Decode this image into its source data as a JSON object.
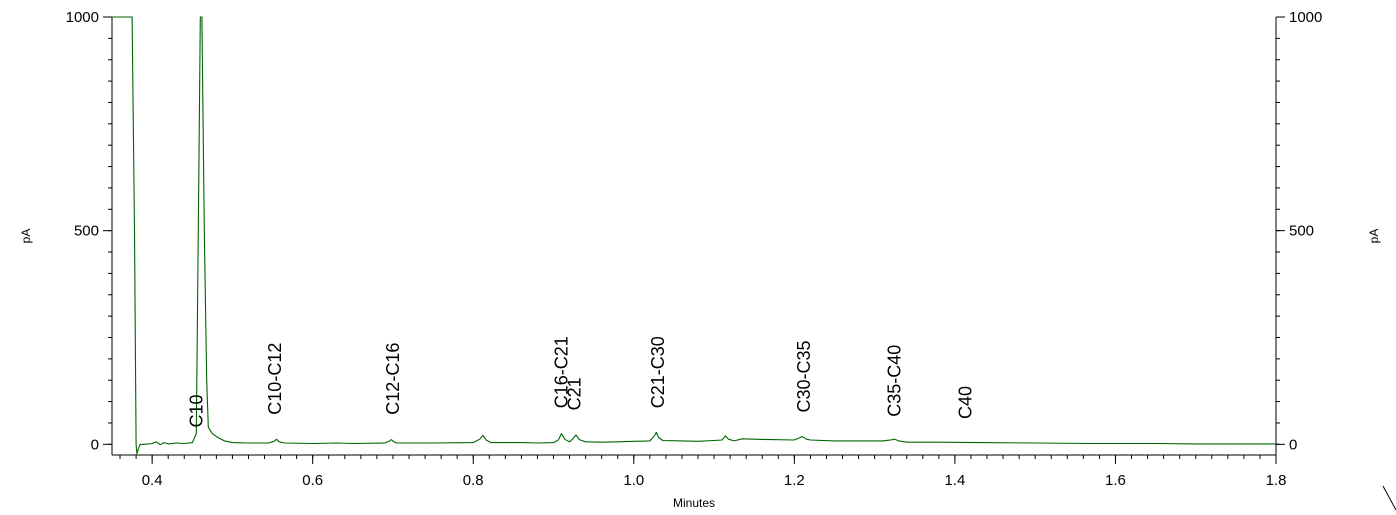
{
  "chart_data": {
    "type": "line",
    "title": "",
    "xlabel": "Minutes",
    "ylabel_left": "pA",
    "ylabel_right": "pA",
    "xlim": [
      0.35,
      1.8
    ],
    "ylim": [
      -25,
      1000
    ],
    "x_ticks": [
      0.4,
      0.6,
      0.8,
      1.0,
      1.2,
      1.4,
      1.6,
      1.8
    ],
    "x_tick_labels": [
      "0.4",
      "0.6",
      "0.8",
      "1.0",
      "1.2",
      "1.4",
      "1.6",
      "1.8"
    ],
    "y_ticks": [
      0,
      500,
      1000
    ],
    "y_tick_labels": [
      "0",
      "500",
      "1000"
    ],
    "grid": false,
    "series_color": "#006400",
    "series": [
      {
        "x": [
          0.35,
          0.375,
          0.378,
          0.38,
          0.381,
          0.383,
          0.385,
          0.39,
          0.4,
          0.405,
          0.41,
          0.415,
          0.42,
          0.43,
          0.44,
          0.45,
          0.455,
          0.458,
          0.46,
          0.462,
          0.465,
          0.468,
          0.47,
          0.475,
          0.48,
          0.49,
          0.5,
          0.52,
          0.545,
          0.552,
          0.555,
          0.558,
          0.565,
          0.6,
          0.63,
          0.65,
          0.69,
          0.695,
          0.698,
          0.701,
          0.705,
          0.75,
          0.8,
          0.808,
          0.812,
          0.816,
          0.822,
          0.86,
          0.88,
          0.9,
          0.906,
          0.91,
          0.914,
          0.92,
          0.924,
          0.928,
          0.932,
          0.94,
          0.96,
          0.98,
          1.0,
          1.02,
          1.025,
          1.028,
          1.031,
          1.036,
          1.06,
          1.08,
          1.1,
          1.11,
          1.114,
          1.118,
          1.125,
          1.135,
          1.15,
          1.17,
          1.2,
          1.205,
          1.21,
          1.215,
          1.22,
          1.25,
          1.28,
          1.31,
          1.32,
          1.325,
          1.33,
          1.34,
          1.38,
          1.43,
          1.5,
          1.57,
          1.65,
          1.7,
          1.8
        ],
        "y": [
          1000,
          1000,
          500,
          0,
          -22,
          -10,
          0,
          0,
          2,
          6,
          -1,
          4,
          1,
          3,
          2,
          4,
          25,
          600,
          1000,
          1000,
          500,
          150,
          40,
          25,
          18,
          8,
          4,
          3,
          3,
          7,
          12,
          6,
          3,
          2,
          3,
          2,
          3,
          7,
          11,
          6,
          3,
          3,
          4,
          12,
          21,
          10,
          4,
          4,
          3,
          4,
          10,
          25,
          12,
          6,
          13,
          22,
          11,
          6,
          5,
          6,
          7,
          8,
          18,
          28,
          16,
          9,
          8,
          7,
          9,
          10,
          20,
          12,
          8,
          13,
          12,
          11,
          10,
          14,
          18,
          12,
          10,
          8,
          8,
          8,
          10,
          12,
          8,
          5,
          5,
          4,
          3,
          2,
          2,
          1,
          1
        ]
      }
    ],
    "annotations": [
      {
        "text": "C10",
        "x": 0.455,
        "y": 30
      },
      {
        "text": "C10-C12",
        "x": 0.553,
        "y": 60
      },
      {
        "text": "C12-C16",
        "x": 0.7,
        "y": 60
      },
      {
        "text": "C16-C21",
        "x": 0.91,
        "y": 75
      },
      {
        "text": "C21",
        "x": 0.926,
        "y": 70
      },
      {
        "text": "C21-C30",
        "x": 1.03,
        "y": 75
      },
      {
        "text": "C30-C35",
        "x": 1.212,
        "y": 65
      },
      {
        "text": "C35-C40",
        "x": 1.325,
        "y": 55
      },
      {
        "text": "C40",
        "x": 1.413,
        "y": 50
      }
    ]
  }
}
